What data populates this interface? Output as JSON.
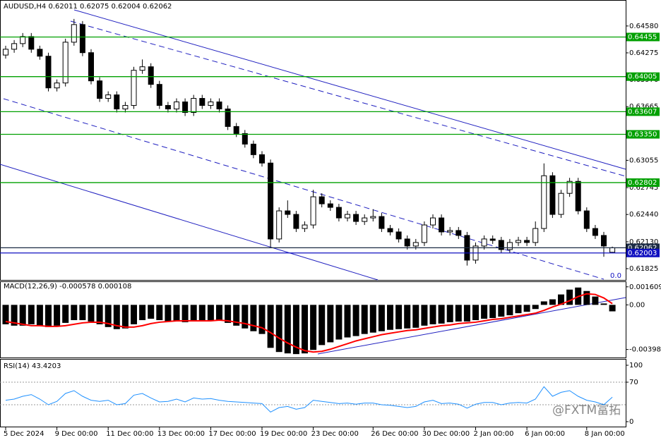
{
  "chart_data": [
    {
      "type": "candlestick",
      "title": "AUDUSD,H4 0.62011 0.62075 0.62004 0.62062",
      "open": [
        0.6425,
        0.64316,
        0.6438,
        0.6446,
        0.64316,
        0.64237,
        0.63877,
        0.63933,
        0.64396,
        0.64596,
        0.64277,
        0.63957,
        0.63758,
        0.63798,
        0.63638,
        0.63678,
        0.64077,
        0.64117,
        0.63917,
        0.63678,
        0.63638,
        0.63718,
        0.63598,
        0.63758,
        0.63678,
        0.63718,
        0.63638,
        0.63439,
        0.63359,
        0.63239,
        0.63119,
        0.63024,
        0.62162,
        0.62481,
        0.62441,
        0.62281,
        0.62321,
        0.62641,
        0.62561,
        0.62521,
        0.62401,
        0.62441,
        0.62361,
        0.62401,
        0.62417,
        0.62281,
        0.62242,
        0.62162,
        0.62082,
        0.62122,
        0.62321,
        0.62401,
        0.62242,
        0.62258,
        0.62202,
        0.61922,
        0.62082,
        0.62162,
        0.62146,
        0.62042,
        0.62122,
        0.62146,
        0.62122,
        0.62281,
        0.6288,
        0.62441,
        0.6268,
        0.62816,
        0.62481,
        0.62281,
        0.62202,
        0.62011
      ],
      "high": [
        0.64356,
        0.6442,
        0.645,
        0.645,
        0.64356,
        0.64277,
        0.63973,
        0.64436,
        0.6466,
        0.64636,
        0.64317,
        0.63997,
        0.63838,
        0.63838,
        0.63718,
        0.64117,
        0.642,
        0.64157,
        0.63957,
        0.63718,
        0.63758,
        0.63758,
        0.63798,
        0.63798,
        0.63758,
        0.63758,
        0.63678,
        0.63479,
        0.63399,
        0.63279,
        0.63159,
        0.63064,
        0.62521,
        0.626,
        0.62481,
        0.62361,
        0.6272,
        0.62681,
        0.62601,
        0.62561,
        0.62481,
        0.62481,
        0.62441,
        0.625,
        0.62457,
        0.62321,
        0.62282,
        0.62202,
        0.62162,
        0.62361,
        0.62441,
        0.62441,
        0.62298,
        0.62298,
        0.62242,
        0.62122,
        0.62202,
        0.62202,
        0.62186,
        0.62162,
        0.62186,
        0.62186,
        0.62361,
        0.6302,
        0.6292,
        0.6272,
        0.62856,
        0.62856,
        0.62521,
        0.62321,
        0.62242,
        0.62075
      ],
      "low": [
        0.6421,
        0.64276,
        0.6434,
        0.64276,
        0.64197,
        0.63837,
        0.63837,
        0.63893,
        0.64356,
        0.64237,
        0.63917,
        0.63718,
        0.63718,
        0.63598,
        0.63598,
        0.63638,
        0.64037,
        0.63877,
        0.63638,
        0.63598,
        0.63598,
        0.63558,
        0.63558,
        0.63638,
        0.63638,
        0.63598,
        0.63399,
        0.63319,
        0.63199,
        0.63079,
        0.62984,
        0.6207,
        0.62122,
        0.62401,
        0.62241,
        0.62241,
        0.62281,
        0.62521,
        0.62481,
        0.62361,
        0.62361,
        0.62321,
        0.62321,
        0.62361,
        0.62241,
        0.62202,
        0.62122,
        0.62042,
        0.62042,
        0.62082,
        0.62281,
        0.62202,
        0.62202,
        0.62162,
        0.6186,
        0.61882,
        0.62042,
        0.62106,
        0.62002,
        0.62002,
        0.62082,
        0.62082,
        0.62082,
        0.62241,
        0.62401,
        0.62401,
        0.6264,
        0.62441,
        0.62241,
        0.62162,
        0.6196,
        0.62004
      ],
      "close": [
        0.64316,
        0.6438,
        0.6446,
        0.64316,
        0.64237,
        0.63877,
        0.63933,
        0.64396,
        0.64596,
        0.64277,
        0.63957,
        0.63758,
        0.63798,
        0.63638,
        0.63678,
        0.64077,
        0.64117,
        0.63917,
        0.63678,
        0.63638,
        0.63718,
        0.63598,
        0.63758,
        0.63678,
        0.63718,
        0.63638,
        0.63439,
        0.63359,
        0.63239,
        0.63119,
        0.63024,
        0.62162,
        0.62481,
        0.62441,
        0.62281,
        0.62321,
        0.62641,
        0.62561,
        0.62521,
        0.62401,
        0.62441,
        0.62361,
        0.62401,
        0.62417,
        0.62281,
        0.62242,
        0.62162,
        0.62082,
        0.62122,
        0.62321,
        0.62401,
        0.62242,
        0.62258,
        0.62202,
        0.61922,
        0.62082,
        0.62162,
        0.62146,
        0.62042,
        0.62122,
        0.62146,
        0.62122,
        0.62281,
        0.6288,
        0.62441,
        0.6268,
        0.62816,
        0.62481,
        0.62281,
        0.62202,
        0.62082,
        0.62062
      ],
      "up_color": "#ffffff",
      "down_color": "#000000",
      "ylim": [
        0.61697,
        0.64875
      ],
      "yticks": [
        {
          "value": 0.6458,
          "label": "0.64580"
        },
        0.64275,
        {
          "value": 0.6397,
          "label": "0.63970"
        },
        0.63665,
        {
          "value": 0.6336,
          "label": "0.63360"
        },
        0.63055,
        0.62745,
        {
          "value": 0.6244,
          "label": "0.62440"
        },
        {
          "value": 0.6213,
          "label": "0.62130"
        },
        0.61825
      ],
      "levels": [
        {
          "value": 0.64455,
          "color": "#00a000"
        },
        {
          "value": 0.64005,
          "color": "#00a000"
        },
        {
          "value": 0.63607,
          "color": "#00a000"
        },
        {
          "value": 0.6335,
          "label": "0.63350",
          "color": "#00a000"
        },
        {
          "value": 0.62802,
          "color": "#00a000"
        },
        {
          "value": 0.62062,
          "color": "#1b2a44"
        },
        {
          "value": 0.62003,
          "color": "#1010c0"
        }
      ],
      "annotation": "0.0"
    },
    {
      "type": "macd",
      "title": "MACD(12,26,9) -0.000578 0.000108",
      "ylim": [
        -0.0047,
        0.0021
      ],
      "yticks": [
        0.001609,
        {
          "value": 0,
          "label": "0.00"
        },
        -0.003984
      ],
      "series": [
        {
          "color": "#000000",
          "values": [
            -0.001733,
            -0.001857,
            -0.001857,
            -0.001733,
            -0.001857,
            -0.001981,
            -0.001857,
            -0.001609,
            -0.001362,
            -0.001362,
            -0.001486,
            -0.001733,
            -0.001981,
            -0.002167,
            -0.002105,
            -0.001733,
            -0.001362,
            -0.001238,
            -0.001362,
            -0.001486,
            -0.001486,
            -0.001548,
            -0.001486,
            -0.001424,
            -0.001362,
            -0.001362,
            -0.001609,
            -0.001857,
            -0.002105,
            -0.002352,
            -0.0026,
            -0.003838,
            -0.004209,
            -0.004333,
            -0.004395,
            -0.004333,
            -0.004024,
            -0.00359,
            -0.003343,
            -0.003095,
            -0.002909,
            -0.002786,
            -0.0026,
            -0.002476,
            -0.002352,
            -0.002228,
            -0.002167,
            -0.002105,
            -0.002043,
            -0.001857,
            -0.001733,
            -0.001671,
            -0.001548,
            -0.001486,
            -0.001486,
            -0.001362,
            -0.001238,
            -0.001176,
            -0.001052,
            -0.000929,
            -0.000743,
            -0.000619,
            -0.000371,
            0.00031,
            0.000495,
            0.000929,
            0.001362,
            0.001548,
            0.001238,
            0.000743,
            0.000124,
            -0.000578
          ]
        },
        {
          "color": "#ff0000",
          "values": [
            -0.001486,
            -0.001609,
            -0.001733,
            -0.001857,
            -0.001857,
            -0.001919,
            -0.001919,
            -0.001857,
            -0.001733,
            -0.001609,
            -0.001548,
            -0.001548,
            -0.001671,
            -0.001857,
            -0.001981,
            -0.001981,
            -0.001857,
            -0.001671,
            -0.001548,
            -0.001486,
            -0.001424,
            -0.001424,
            -0.001424,
            -0.001424,
            -0.001424,
            -0.001362,
            -0.001424,
            -0.001548,
            -0.001671,
            -0.001857,
            -0.002043,
            -0.002476,
            -0.002971,
            -0.003405,
            -0.003776,
            -0.004085,
            -0.004209,
            -0.004147,
            -0.003962,
            -0.003714,
            -0.003466,
            -0.003219,
            -0.003033,
            -0.002847,
            -0.002662,
            -0.002538,
            -0.002414,
            -0.00229,
            -0.002228,
            -0.002105,
            -0.001981,
            -0.001857,
            -0.001795,
            -0.001671,
            -0.001609,
            -0.001548,
            -0.001424,
            -0.0013,
            -0.001238,
            -0.001114,
            -0.00099,
            -0.000867,
            -0.000743,
            -0.000495,
            -0.000186,
            6.2e-05,
            0.000371,
            0.000743,
            0.00099,
            0.000929,
            0.000619,
            0.000108
          ]
        }
      ]
    },
    {
      "type": "line",
      "title": "RSI(14) 43.4203",
      "color": "#1e90ff",
      "values": [
        38,
        40,
        45,
        48,
        40,
        30,
        36,
        50,
        55,
        45,
        38,
        36,
        38,
        30,
        32,
        47,
        50,
        42,
        35,
        36,
        40,
        35,
        42,
        40,
        41,
        38,
        36,
        35,
        34,
        33,
        32,
        17,
        25,
        27,
        22,
        25,
        38,
        36,
        34,
        32,
        33,
        31,
        33,
        33,
        30,
        29,
        27,
        25,
        27,
        35,
        38,
        32,
        33,
        31,
        24,
        31,
        34,
        34,
        30,
        33,
        34,
        33,
        40,
        62,
        45,
        52,
        55,
        45,
        38,
        35,
        30,
        43.4203
      ],
      "ylim": [
        -8.75,
        110
      ],
      "yticks": [
        100,
        70,
        0
      ],
      "levels": [
        70,
        30
      ],
      "xticks": [
        {
          "value": 0,
          "label": "5 Dec 2024"
        },
        {
          "value": 6,
          "label": "9 Dec 00:00"
        },
        {
          "value": 12,
          "label": "11 Dec 00:00"
        },
        {
          "value": 18,
          "label": "13 Dec 00:00"
        },
        {
          "value": 24,
          "label": "17 Dec 00:00"
        },
        {
          "value": 30,
          "label": "19 Dec 00:00"
        },
        {
          "value": 36,
          "label": "23 Dec 00:00"
        },
        {
          "value": 43,
          "label": "26 Dec 00:00"
        },
        {
          "value": 49,
          "label": "30 Dec 00:00"
        },
        {
          "value": 55,
          "label": "2 Jan 00:00"
        },
        {
          "value": 61,
          "label": "6 Jan 00:00"
        },
        {
          "value": 68,
          "label": "8 Jan 00:00"
        }
      ]
    }
  ],
  "watermark": "@FXTM富拓"
}
